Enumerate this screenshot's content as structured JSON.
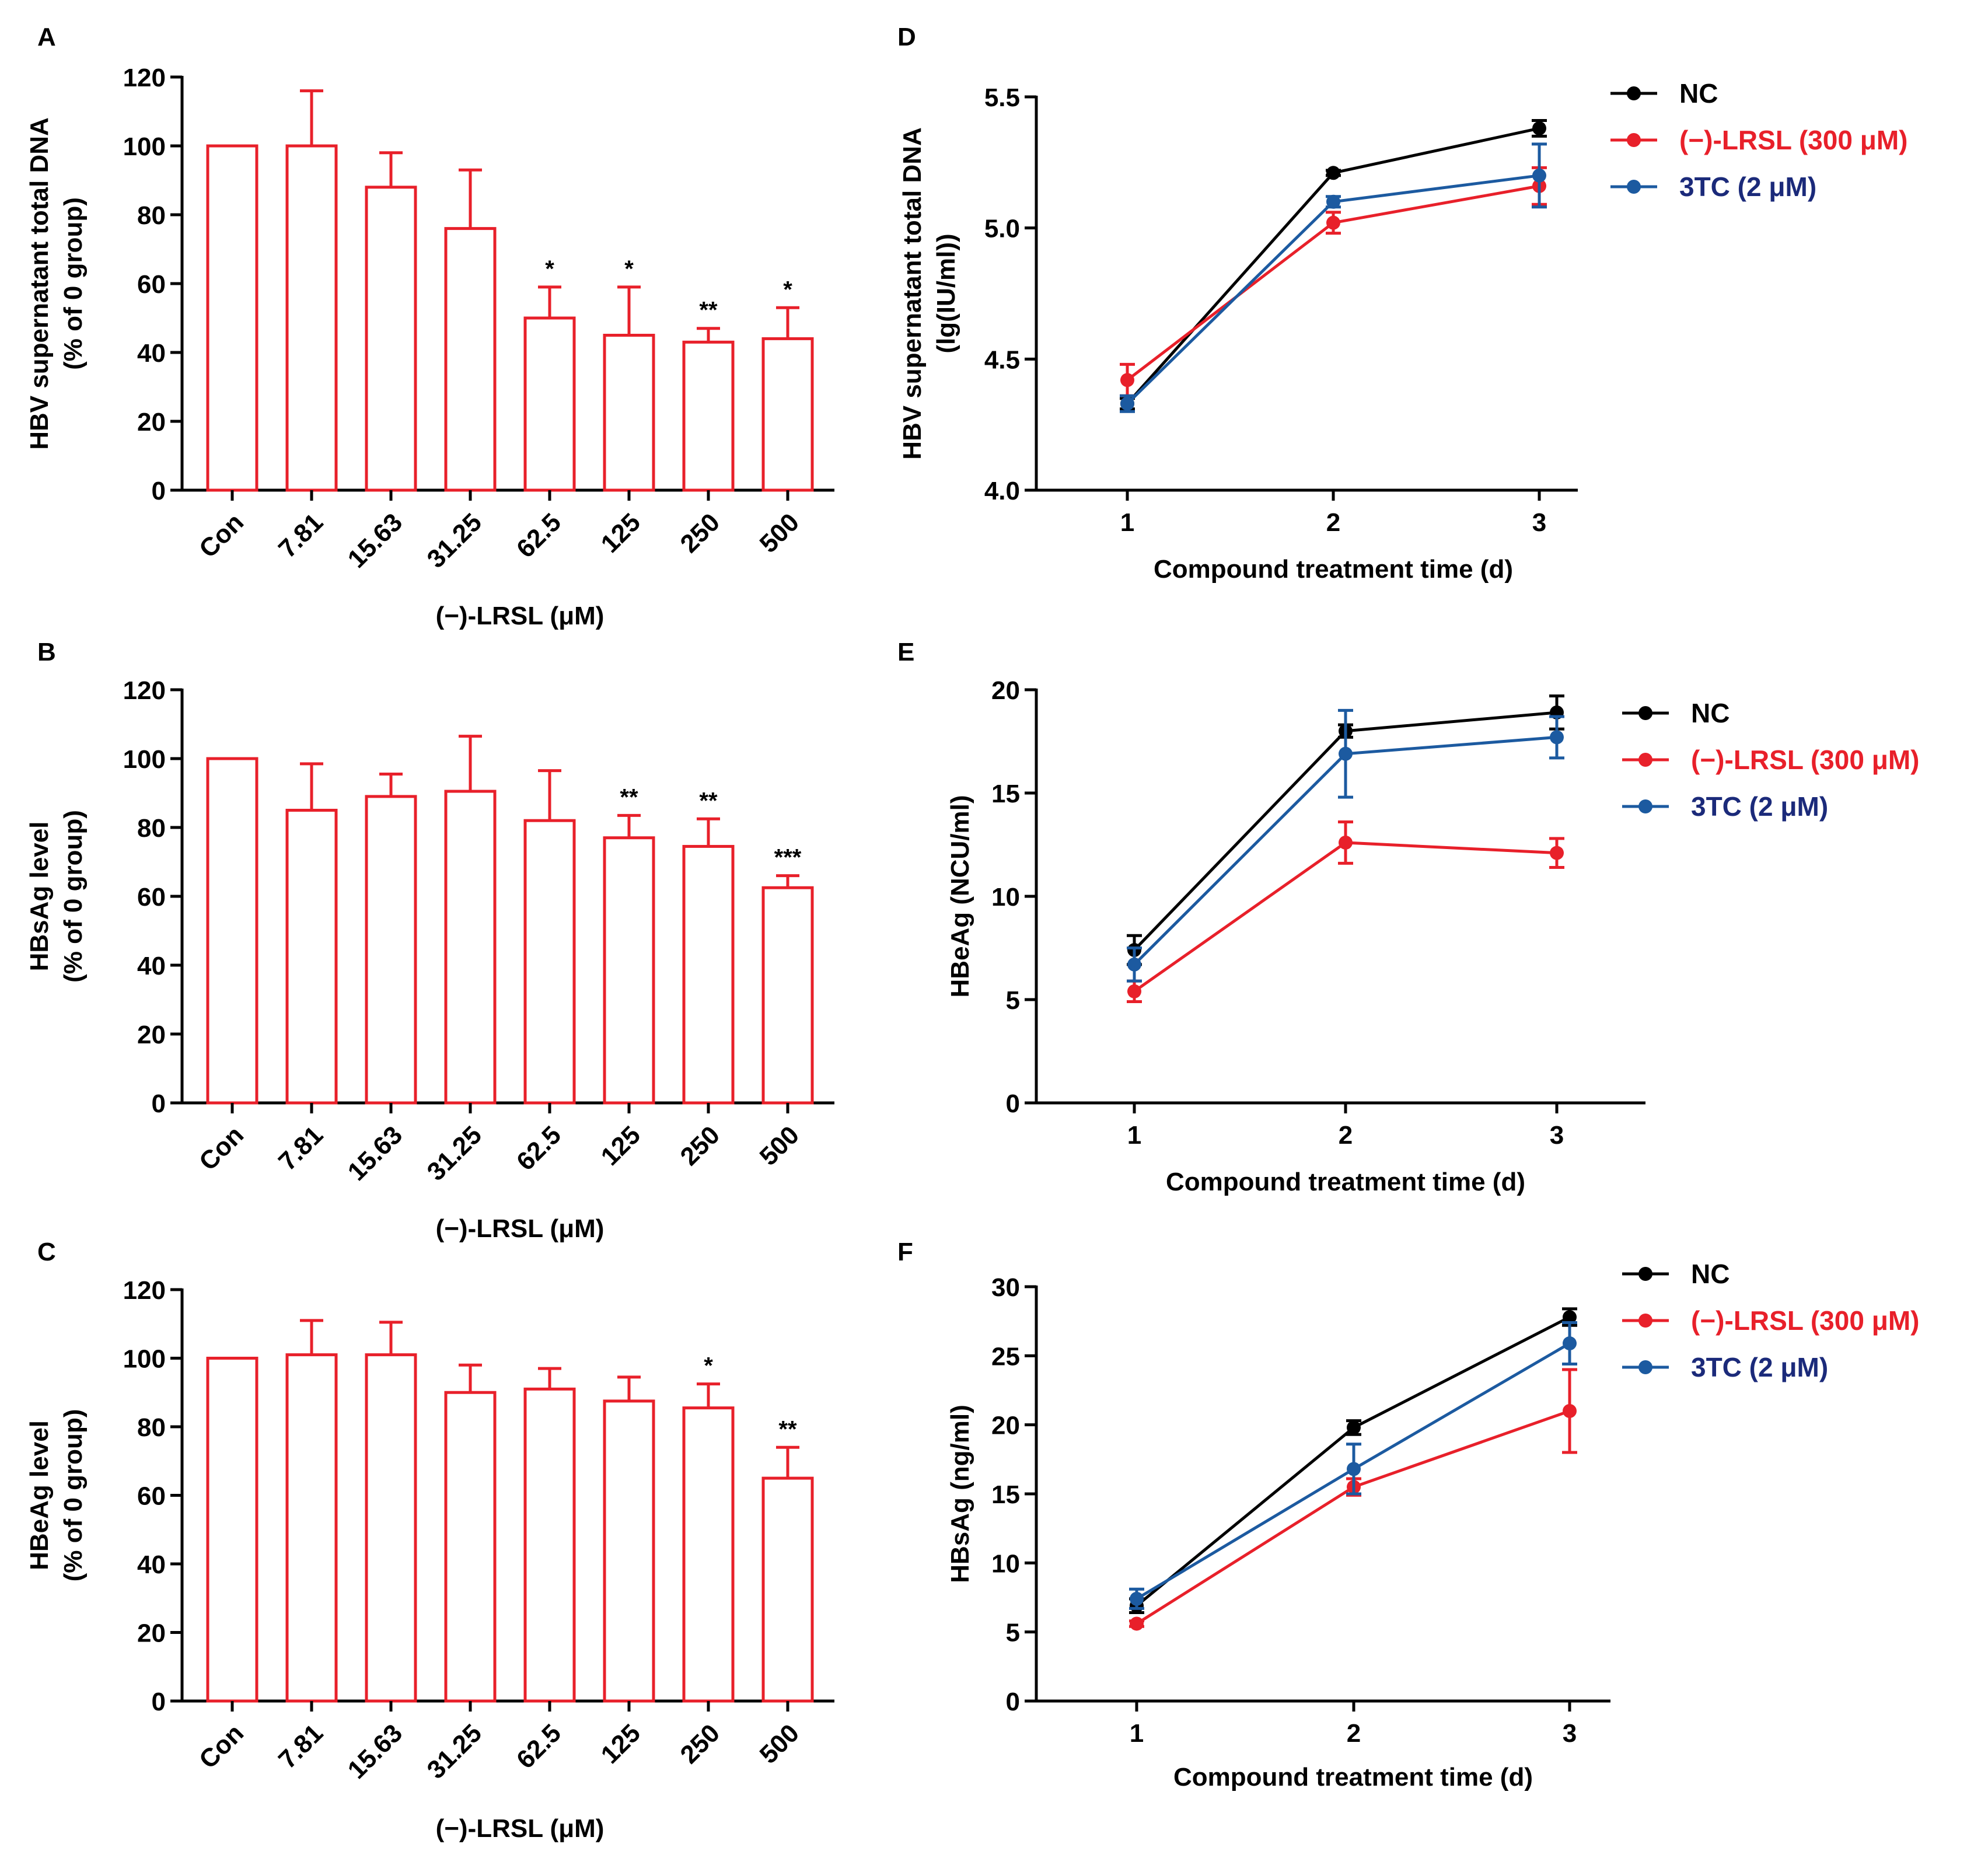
{
  "colors": {
    "black": "#000000",
    "red": "#e8202a",
    "blue": "#1c5aa0",
    "legend_blue_text": "#1b2a7a"
  },
  "chart_data": [
    {
      "panel": "A",
      "type": "bar",
      "ylabel": [
        "HBV supernatant total DNA",
        "(% of 0 group)"
      ],
      "xlabel": "(−)-LRSL (μM)",
      "categories": [
        "Con",
        "7.81",
        "15.63",
        "31.25",
        "62.5",
        "125",
        "250",
        "500"
      ],
      "values": [
        100,
        100,
        88,
        76,
        50,
        45,
        43,
        44
      ],
      "errors": [
        0,
        16,
        10,
        17,
        9,
        14,
        4,
        9
      ],
      "significance": [
        "",
        "",
        "",
        "",
        "*",
        "*",
        "**",
        "*"
      ],
      "ylim": [
        0,
        120
      ],
      "yticks": [
        "0",
        "20",
        "40",
        "60",
        "80",
        "100",
        "120"
      ]
    },
    {
      "panel": "B",
      "type": "bar",
      "ylabel": [
        "HBsAg level",
        "(% of 0 group)"
      ],
      "xlabel": "(−)-LRSL (μM)",
      "categories": [
        "Con",
        "7.81",
        "15.63",
        "31.25",
        "62.5",
        "125",
        "250",
        "500"
      ],
      "values": [
        100,
        85,
        89,
        90.5,
        82,
        77,
        74.5,
        62.5
      ],
      "errors": [
        0,
        13.5,
        6.5,
        16,
        14.5,
        6.5,
        8,
        3.5
      ],
      "significance": [
        "",
        "",
        "",
        "",
        "",
        "**",
        "**",
        "***"
      ],
      "ylim": [
        0,
        120
      ],
      "yticks": [
        "0",
        "20",
        "40",
        "60",
        "80",
        "100",
        "120"
      ]
    },
    {
      "panel": "C",
      "type": "bar",
      "ylabel": [
        "HBeAg level",
        "(% of 0 group)"
      ],
      "xlabel": "(−)-LRSL (μM)",
      "categories": [
        "Con",
        "7.81",
        "15.63",
        "31.25",
        "62.5",
        "125",
        "250",
        "500"
      ],
      "values": [
        100,
        101,
        101,
        90,
        91,
        87.5,
        85.5,
        65
      ],
      "errors": [
        0,
        10,
        9.5,
        8,
        6,
        7,
        7,
        9
      ],
      "significance": [
        "",
        "",
        "",
        "",
        "",
        "",
        "*",
        "**"
      ],
      "ylim": [
        0,
        120
      ],
      "yticks": [
        "0",
        "20",
        "40",
        "60",
        "80",
        "100",
        "120"
      ]
    },
    {
      "panel": "D",
      "type": "line",
      "ylabel": [
        "HBV supernatant total DNA",
        "(lg(IU/ml))"
      ],
      "xlabel": "Compound treatment time (d)",
      "x": [
        1,
        2,
        3
      ],
      "xticks": [
        "1",
        "2",
        "3"
      ],
      "ylim": [
        4.0,
        5.5
      ],
      "yticks": [
        "4.0",
        "4.5",
        "5.0",
        "5.5"
      ],
      "series": [
        {
          "name": "NC",
          "color": "#000000",
          "values": [
            4.33,
            5.21,
            5.38
          ],
          "errors": [
            0.02,
            0.01,
            0.03
          ]
        },
        {
          "name": "(−)-LRSL (300 μM)",
          "color": "#e8202a",
          "values": [
            4.42,
            5.02,
            5.16
          ],
          "errors": [
            0.06,
            0.04,
            0.07
          ]
        },
        {
          "name": "3TC (2 μM)",
          "color": "#1c5aa0",
          "values": [
            4.33,
            5.1,
            5.2
          ],
          "errors": [
            0.03,
            0.02,
            0.12
          ]
        }
      ]
    },
    {
      "panel": "E",
      "type": "line",
      "ylabel": [
        "HBeAg (NCU/ml)"
      ],
      "xlabel": "Compound treatment time (d)",
      "x": [
        1,
        2,
        3
      ],
      "xticks": [
        "1",
        "2",
        "3"
      ],
      "ylim": [
        0,
        20
      ],
      "yticks": [
        "0",
        "5",
        "10",
        "15",
        "20"
      ],
      "series": [
        {
          "name": "NC",
          "color": "#000000",
          "values": [
            7.4,
            18.0,
            18.9
          ],
          "errors": [
            0.7,
            0.3,
            0.8
          ]
        },
        {
          "name": "(−)-LRSL (300 μM)",
          "color": "#e8202a",
          "values": [
            5.4,
            12.6,
            12.1
          ],
          "errors": [
            0.5,
            1.0,
            0.7
          ]
        },
        {
          "name": "3TC (2 μM)",
          "color": "#1c5aa0",
          "values": [
            6.7,
            16.9,
            17.7
          ],
          "errors": [
            0.8,
            2.1,
            1.0
          ]
        }
      ]
    },
    {
      "panel": "F",
      "type": "line",
      "ylabel": [
        "HBsAg (ng/ml)"
      ],
      "xlabel": "Compound treatment time (d)",
      "x": [
        1,
        2,
        3
      ],
      "xticks": [
        "1",
        "2",
        "3"
      ],
      "ylim": [
        0,
        30
      ],
      "yticks": [
        "0",
        "5",
        "10",
        "15",
        "20",
        "25",
        "30"
      ],
      "series": [
        {
          "name": "NC",
          "color": "#000000",
          "values": [
            6.9,
            19.8,
            27.8
          ],
          "errors": [
            0.5,
            0.5,
            0.6
          ]
        },
        {
          "name": "(−)-LRSL (300 μM)",
          "color": "#e8202a",
          "values": [
            5.6,
            15.5,
            21.0
          ],
          "errors": [
            0.2,
            0.6,
            3.0
          ]
        },
        {
          "name": "3TC (2 μM)",
          "color": "#1c5aa0",
          "values": [
            7.4,
            16.8,
            25.9
          ],
          "errors": [
            0.7,
            1.8,
            1.5
          ]
        }
      ]
    }
  ]
}
